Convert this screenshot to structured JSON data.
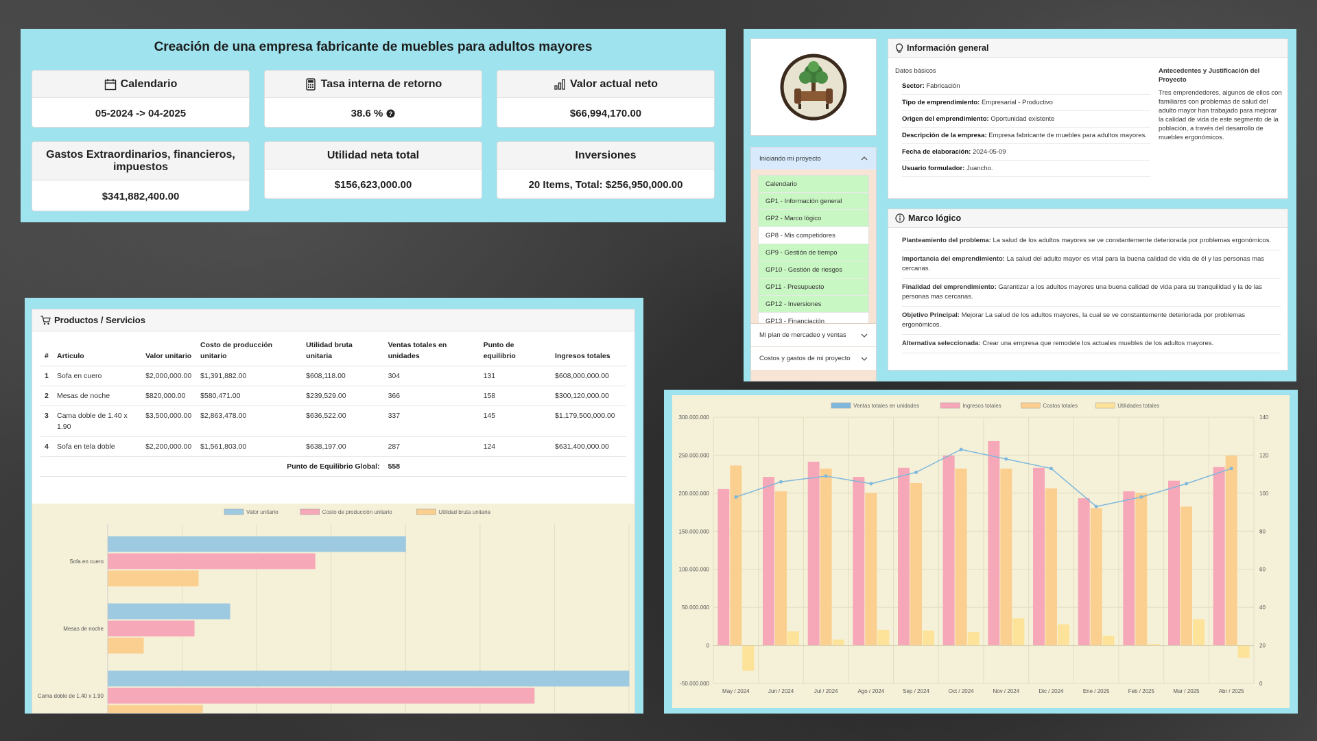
{
  "summary": {
    "title": "Creación de una empresa fabricante de muebles para adultos mayores",
    "cards": {
      "calendar": {
        "label": "Calendario",
        "value": "05-2024 -> 04-2025",
        "icon": "calendar-icon"
      },
      "irr": {
        "label": "Tasa interna de retorno",
        "value": "38.6 %",
        "icon": "calculator-icon",
        "info_icon": "info-circle-icon"
      },
      "npv": {
        "label": "Valor actual neto",
        "value": "$66,994,170.00",
        "icon": "bar-chart-icon"
      },
      "expenses": {
        "label": "Gastos Extraordinarios, financieros, impuestos",
        "value": "$341,882,400.00"
      },
      "net_profit": {
        "label": "Utilidad neta total",
        "value": "$156,623,000.00"
      },
      "investments": {
        "label": "Inversiones",
        "value": "20 Items, Total: $256,950,000.00"
      }
    }
  },
  "info": {
    "logo": "company-logo-tree-armchair",
    "general": {
      "header": "Información general",
      "basics_title": "Datos básicos",
      "fields": [
        {
          "key": "Sector:",
          "value": "Fabricación"
        },
        {
          "key": "Tipo de emprendimiento:",
          "value": "Empresarial - Productivo"
        },
        {
          "key": "Origen del emprendimiento:",
          "value": "Oportunidad existente"
        },
        {
          "key": "Descripción de la empresa:",
          "value": "Empresa fabricante de muebles para adultos mayores."
        },
        {
          "key": "Fecha de elaboración:",
          "value": "2024-05-09"
        },
        {
          "key": "Usuario formulador:",
          "value": "Juancho."
        }
      ],
      "background_title": "Antecedentes y Justificación del Proyecto",
      "background_text": "Tres emprendedores, algunos de ellos con familiares con problemas de salud del adulto mayor han trabajado para mejorar la calidad de vida de este segmento de la población, a través del desarrollo de muebles ergonómicos."
    },
    "menu": {
      "open_section": "Iniciando mi proyecto",
      "items": [
        {
          "label": "Calendario",
          "state": "green"
        },
        {
          "label": "GP1 - Información general",
          "state": "green"
        },
        {
          "label": "GP2 - Marco lógico",
          "state": "green"
        },
        {
          "label": "GP8 - Mis competidores",
          "state": "white"
        },
        {
          "label": "GP9 - Gestión de tiempo",
          "state": "green"
        },
        {
          "label": "GP10 - Gestión de riesgos",
          "state": "green"
        },
        {
          "label": "GP11 - Presupuesto",
          "state": "green"
        },
        {
          "label": "GP12 - Inversiones",
          "state": "green"
        },
        {
          "label": "GP13 - Financiación",
          "state": "white"
        }
      ],
      "collapsed_sections": [
        "Mi plan de mercadeo y ventas",
        "Costos y gastos de mi proyecto"
      ]
    },
    "logic": {
      "header": "Marco lógico",
      "rows": [
        {
          "key": "Planteamiento del problema:",
          "value": "La salud de los adultos mayores se ve constantemente deteriorada por problemas ergonómicos."
        },
        {
          "key": "Importancia del emprendimiento:",
          "value": "La salud del adulto mayor es vital para la buena calidad de vida de él y las personas mas cercanas."
        },
        {
          "key": "Finalidad del emprendimiento:",
          "value": "Garantizar a los adultos mayores una buena calidad de vida para su tranquilidad y la de las personas mas cercanas."
        },
        {
          "key": "Objetivo Principal:",
          "value": "Mejorar La salud de los adultos mayores, la cual se ve constantemente deteriorada por problemas ergonómicos."
        },
        {
          "key": "Alternativa seleccionada:",
          "value": "Crear una empresa que remodele los actuales muebles de los adultos mayores."
        }
      ]
    }
  },
  "products": {
    "header": "Productos / Servicios",
    "columns": [
      "#",
      "Articulo",
      "Valor unitario",
      "Costo de producción unitario",
      "Utilidad bruta unitaria",
      "Ventas totales en unidades",
      "Punto de equilibrio",
      "Ingresos totales"
    ],
    "rows": [
      [
        "1",
        "Sofa en cuero",
        "$2,000,000.00",
        "$1,391,882.00",
        "$608,118.00",
        "304",
        "131",
        "$608,000,000.00"
      ],
      [
        "2",
        "Mesas de noche",
        "$820,000.00",
        "$580,471.00",
        "$239,529.00",
        "366",
        "158",
        "$300,120,000.00"
      ],
      [
        "3",
        "Cama doble de 1.40 x 1.90",
        "$3,500,000.00",
        "$2,863,478.00",
        "$636,522.00",
        "337",
        "145",
        "$1,179,500,000.00"
      ],
      [
        "4",
        "Sofa en tela doble",
        "$2,200,000.00",
        "$1,561,803.00",
        "$638,197.00",
        "287",
        "124",
        "$631,400,000.00"
      ]
    ],
    "footer_label": "Punto de Equilibrio Global:",
    "footer_value": "558"
  },
  "chart_data": [
    {
      "type": "bar",
      "orientation": "horizontal",
      "legend_position": "top",
      "categories": [
        "Sofa en cuero",
        "Mesas de noche",
        "Cama doble de 1.40 x 1.90"
      ],
      "series": [
        {
          "name": "Valor unitario",
          "values": [
            2000000,
            820000,
            3500000
          ],
          "color": "#9ecae1"
        },
        {
          "name": "Costo de producción unitario",
          "values": [
            1391882,
            580471,
            2863478
          ],
          "color": "#f7a8b8"
        },
        {
          "name": "Utilidad bruta unitaria",
          "values": [
            608118,
            239529,
            636522
          ],
          "color": "#fbcf8f"
        }
      ],
      "xlim": [
        0,
        3500000
      ],
      "grid": true
    },
    {
      "type": "bar",
      "legend_position": "top",
      "categories": [
        "May / 2024",
        "Jun / 2024",
        "Jul / 2024",
        "Ago / 2024",
        "Sep / 2024",
        "Oct / 2024",
        "Nov / 2024",
        "Dic / 2024",
        "Ene / 2025",
        "Feb / 2025",
        "Mar / 2025",
        "Abr / 2025"
      ],
      "series": [
        {
          "name": "Ventas totales en unidades",
          "kind": "line",
          "axis": "right",
          "values": [
            98,
            106,
            109,
            105,
            111,
            123,
            118,
            113,
            93,
            98,
            105,
            113
          ],
          "color": "#7fb8dc"
        },
        {
          "name": "Ingresos totales",
          "kind": "bar",
          "axis": "left",
          "values": [
            205000000,
            221000000,
            241000000,
            221000000,
            233000000,
            249000000,
            268000000,
            233000000,
            193000000,
            202000000,
            216000000,
            234000000
          ],
          "color": "#f7a8b8"
        },
        {
          "name": "Costos totales",
          "kind": "bar",
          "axis": "left",
          "values": [
            236000000,
            202000000,
            232000000,
            200000000,
            213000000,
            232000000,
            232000000,
            206000000,
            180000000,
            200000000,
            182000000,
            249000000
          ],
          "color": "#fbcf8f"
        },
        {
          "name": "Utilidades totales",
          "kind": "bar",
          "axis": "left",
          "values": [
            -33000000,
            18000000,
            7000000,
            20000000,
            19000000,
            17000000,
            35000000,
            27000000,
            12000000,
            1000000,
            34000000,
            -16000000
          ],
          "color": "#fde39a"
        }
      ],
      "ylim_left": [
        -50000000,
        300000000
      ],
      "ylim_right": [
        0,
        140
      ],
      "y_ticks_left": [
        "300.000.000",
        "250.000.000",
        "200.000.000",
        "150.000.000",
        "100.000.000",
        "50.000.000",
        "0",
        "-50.000.000"
      ],
      "y_ticks_right": [
        "140",
        "120",
        "100",
        "80",
        "60",
        "40",
        "20",
        "0"
      ],
      "grid": true
    }
  ]
}
